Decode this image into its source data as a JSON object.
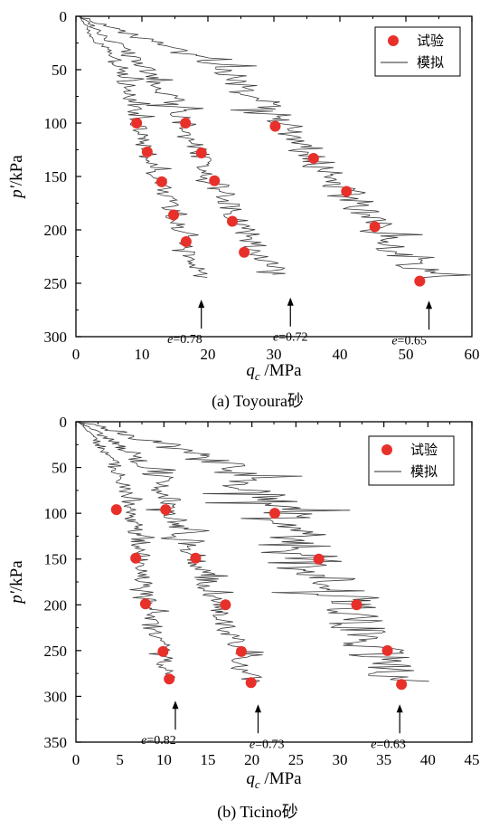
{
  "chart_data": [
    {
      "type": "scatter",
      "title": "",
      "caption": "(a) Toyoura砂",
      "xlabel": {
        "base": "q",
        "sub": "c",
        "rest": " /MPa"
      },
      "ylabel": {
        "base": "p",
        "prime": "'",
        "rest": "/kPa"
      },
      "xlim": [
        0,
        60
      ],
      "ylim": [
        0,
        300
      ],
      "y_inverted": true,
      "x_ticks": [
        0,
        10,
        20,
        30,
        40,
        50,
        60
      ],
      "y_ticks": [
        0,
        50,
        100,
        150,
        200,
        250,
        300
      ],
      "legend": {
        "position": "top-right",
        "scatter_label": "试验",
        "line_label": "模拟"
      },
      "experiment": [
        {
          "x": 9.2,
          "y": 100
        },
        {
          "x": 10.8,
          "y": 127
        },
        {
          "x": 13,
          "y": 155
        },
        {
          "x": 14.8,
          "y": 186
        },
        {
          "x": 16.7,
          "y": 211
        },
        {
          "x": 16.6,
          "y": 100
        },
        {
          "x": 19,
          "y": 128
        },
        {
          "x": 21,
          "y": 154
        },
        {
          "x": 23.7,
          "y": 192
        },
        {
          "x": 25.5,
          "y": 221
        },
        {
          "x": 30.2,
          "y": 103
        },
        {
          "x": 36,
          "y": 133
        },
        {
          "x": 41,
          "y": 164
        },
        {
          "x": 45.3,
          "y": 197
        },
        {
          "x": 52.1,
          "y": 248
        }
      ],
      "simulation": [
        {
          "label": "e=0.78",
          "amp": 1.4,
          "spike": 2.6,
          "path": [
            [
              0.5,
              0
            ],
            [
              2,
              15
            ],
            [
              4.5,
              32
            ],
            [
              7,
              50
            ],
            [
              8.3,
              75
            ],
            [
              9.2,
              100
            ],
            [
              10.8,
              127
            ],
            [
              13,
              155
            ],
            [
              14.8,
              186
            ],
            [
              16.5,
              211
            ],
            [
              17.8,
              230
            ],
            [
              18.8,
              245
            ]
          ],
          "arrow_x": 19,
          "label_x": 16.5
        },
        {
          "label": "e=0.72",
          "amp": 2.0,
          "spike": 3.8,
          "path": [
            [
              0.5,
              0
            ],
            [
              3,
              12
            ],
            [
              6.5,
              28
            ],
            [
              10,
              45
            ],
            [
              13.5,
              68
            ],
            [
              16.6,
              100
            ],
            [
              19,
              128
            ],
            [
              21,
              154
            ],
            [
              23.5,
              180
            ],
            [
              26,
              205
            ],
            [
              28.5,
              228
            ],
            [
              31.5,
              243
            ]
          ],
          "arrow_x": 32.5,
          "label_x": 32.5
        },
        {
          "label": "e=0.65",
          "amp": 3.0,
          "spike": 5.5,
          "path": [
            [
              0.5,
              0
            ],
            [
              5,
              10
            ],
            [
              12,
              25
            ],
            [
              20,
              42
            ],
            [
              27,
              70
            ],
            [
              31,
              100
            ],
            [
              36,
              133
            ],
            [
              41,
              164
            ],
            [
              45.3,
              197
            ],
            [
              49,
              225
            ],
            [
              53,
              240
            ],
            [
              55,
              246
            ]
          ],
          "arrow_x": 53.5,
          "label_x": 50.5
        }
      ]
    },
    {
      "type": "scatter",
      "title": "",
      "caption": "(b) Ticino砂",
      "xlabel": {
        "base": "q",
        "sub": "c",
        "rest": " /MPa"
      },
      "ylabel": {
        "base": "p",
        "prime": "'",
        "rest": "/kPa"
      },
      "xlim": [
        0,
        45
      ],
      "ylim": [
        0,
        350
      ],
      "y_inverted": true,
      "x_ticks": [
        0,
        5,
        10,
        15,
        20,
        25,
        30,
        35,
        40,
        45
      ],
      "y_ticks": [
        0,
        50,
        100,
        150,
        200,
        250,
        300,
        350
      ],
      "legend": {
        "position": "top-right",
        "scatter_label": "试验",
        "line_label": "模拟"
      },
      "experiment": [
        {
          "x": 4.6,
          "y": 96
        },
        {
          "x": 6.8,
          "y": 149
        },
        {
          "x": 7.9,
          "y": 199
        },
        {
          "x": 9.9,
          "y": 251
        },
        {
          "x": 10.6,
          "y": 281
        },
        {
          "x": 10.2,
          "y": 96
        },
        {
          "x": 13.6,
          "y": 149
        },
        {
          "x": 17,
          "y": 200
        },
        {
          "x": 18.8,
          "y": 251
        },
        {
          "x": 19.9,
          "y": 285
        },
        {
          "x": 22.6,
          "y": 100
        },
        {
          "x": 27.6,
          "y": 150
        },
        {
          "x": 31.9,
          "y": 200
        },
        {
          "x": 35.4,
          "y": 250
        },
        {
          "x": 37,
          "y": 287
        }
      ],
      "simulation": [
        {
          "label": "e=0.82",
          "amp": 1.0,
          "spike": 1.8,
          "path": [
            [
              0.3,
              0
            ],
            [
              2,
              18
            ],
            [
              4,
              40
            ],
            [
              5.5,
              65
            ],
            [
              6.3,
              96
            ],
            [
              7.2,
              149
            ],
            [
              8.2,
              199
            ],
            [
              9.9,
              251
            ],
            [
              10.8,
              281
            ]
          ],
          "arrow_x": 11.3,
          "label_x": 9.4
        },
        {
          "label": "e=0.73",
          "amp": 1.5,
          "spike": 2.6,
          "path": [
            [
              0.3,
              0
            ],
            [
              3,
              15
            ],
            [
              6.5,
              35
            ],
            [
              9,
              60
            ],
            [
              11,
              96
            ],
            [
              13.6,
              149
            ],
            [
              16.2,
              200
            ],
            [
              18.5,
              251
            ],
            [
              20,
              285
            ]
          ],
          "arrow_x": 20.7,
          "label_x": 21.7
        },
        {
          "label": "e=0.63",
          "amp": 3.5,
          "spike": 7.0,
          "path": [
            [
              0.3,
              0
            ],
            [
              5,
              12
            ],
            [
              12,
              30
            ],
            [
              17,
              50
            ],
            [
              21.5,
              80
            ],
            [
              23.5,
              100
            ],
            [
              27,
              150
            ],
            [
              30.5,
              200
            ],
            [
              34,
              250
            ],
            [
              37,
              285
            ]
          ],
          "arrow_x": 36.8,
          "label_x": 35.5
        }
      ]
    }
  ]
}
